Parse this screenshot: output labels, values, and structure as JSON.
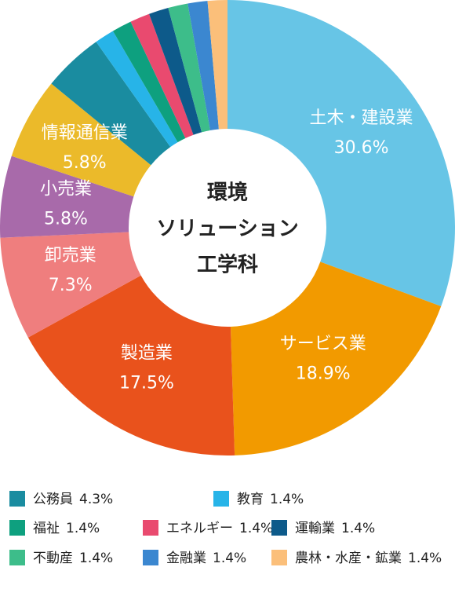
{
  "chart_data": {
    "type": "donut",
    "title": [
      "環境",
      "ソリューション",
      "工学科"
    ],
    "categories": [
      "土木・建設業",
      "サービス業",
      "製造業",
      "卸売業",
      "小売業",
      "情報通信業",
      "公務員",
      "教育",
      "福祉",
      "エネルギー",
      "運輸業",
      "不動産",
      "金融業",
      "農林・水産・鉱業"
    ],
    "values": [
      30.6,
      18.9,
      17.5,
      7.3,
      5.8,
      5.8,
      4.3,
      1.4,
      1.4,
      1.4,
      1.4,
      1.4,
      1.4,
      1.4
    ],
    "value_labels": [
      "30.6%",
      "18.9%",
      "17.5%",
      "7.3%",
      "5.8%",
      "5.8%",
      "4.3%",
      "1.4%",
      "1.4%",
      "1.4%",
      "1.4%",
      "1.4%",
      "1.4%",
      "1.4%"
    ],
    "colors": [
      "#67c5e6",
      "#f29a00",
      "#e9521c",
      "#ef7e7e",
      "#a86aaa",
      "#ebba2a",
      "#1a8ca0",
      "#27b4e8",
      "#0ea07f",
      "#e94a6f",
      "#0d5a8a",
      "#3dbd8a",
      "#3b87d0",
      "#fbbf7a"
    ]
  }
}
